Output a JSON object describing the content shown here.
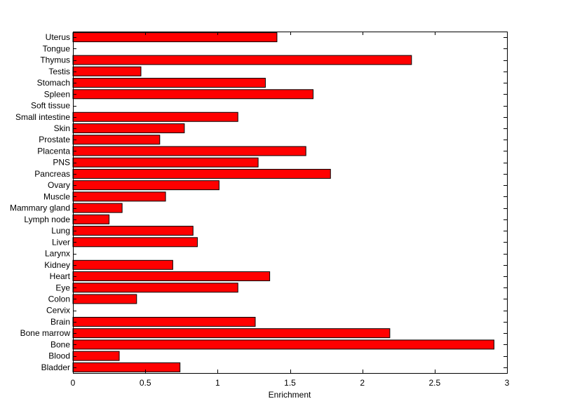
{
  "chart_data": {
    "type": "bar",
    "orientation": "horizontal",
    "title": "",
    "xlabel": "Enrichment",
    "ylabel": "",
    "xlim": [
      0,
      3
    ],
    "xticks": [
      0,
      0.5,
      1,
      1.5,
      2,
      2.5,
      3
    ],
    "xtick_labels": [
      "0",
      "0.5",
      "1",
      "1.5",
      "2",
      "2.5",
      "3"
    ],
    "grid": false,
    "bar_color": "#ff0000",
    "bar_edge_color": "#000000",
    "categories": [
      "Bladder",
      "Blood",
      "Bone",
      "Bone marrow",
      "Brain",
      "Cervix",
      "Colon",
      "Eye",
      "Heart",
      "Kidney",
      "Larynx",
      "Liver",
      "Lung",
      "Lymph node",
      "Mammary gland",
      "Muscle",
      "Ovary",
      "Pancreas",
      "PNS",
      "Placenta",
      "Prostate",
      "Skin",
      "Small intestine",
      "Soft tissue",
      "Spleen",
      "Stomach",
      "Testis",
      "Thymus",
      "Tongue",
      "Uterus"
    ],
    "values": [
      0.74,
      0.32,
      2.91,
      2.19,
      1.26,
      0,
      0.44,
      1.14,
      1.36,
      0.69,
      0,
      0.86,
      0.83,
      0.25,
      0.34,
      0.64,
      1.01,
      1.78,
      1.28,
      1.61,
      0.6,
      0.77,
      1.14,
      0,
      1.66,
      1.33,
      0.47,
      2.34,
      0,
      1.41
    ]
  }
}
